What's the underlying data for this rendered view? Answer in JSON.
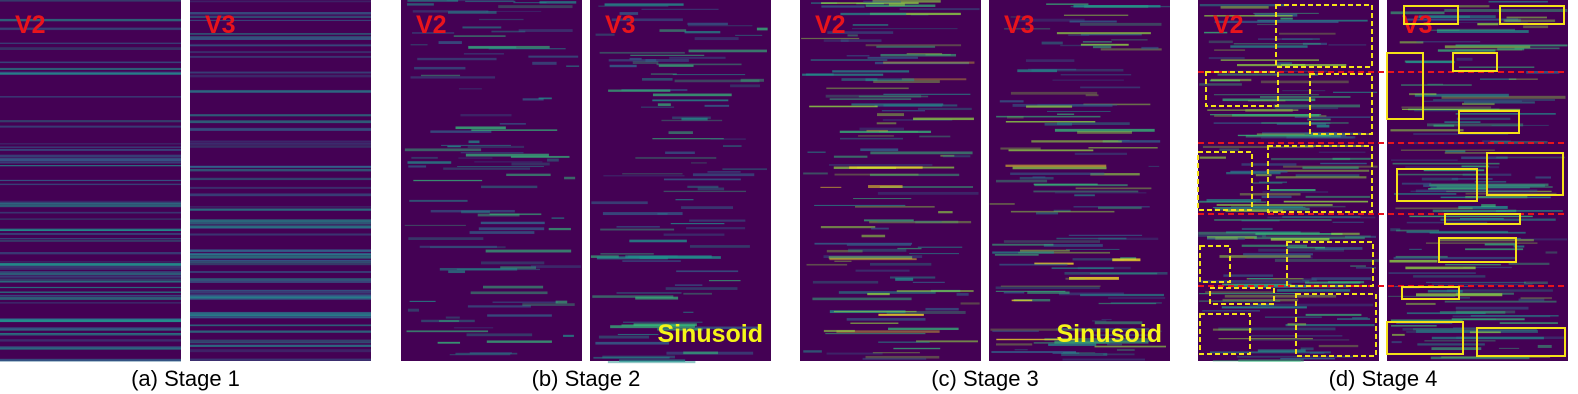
{
  "figure": {
    "panels": [
      {
        "caption": "(a) Stage 1",
        "images": [
          {
            "label": "V2"
          },
          {
            "label": "V3"
          }
        ]
      },
      {
        "caption": "(b) Stage 2",
        "images": [
          {
            "label": "V2"
          },
          {
            "label": "V3",
            "annotation": "Sinusoid"
          }
        ]
      },
      {
        "caption": "(c) Stage 3",
        "images": [
          {
            "label": "V2"
          },
          {
            "label": "V3",
            "annotation": "Sinusoid"
          }
        ]
      },
      {
        "caption": "(d) Stage 4",
        "images": [
          {
            "label": "V2"
          },
          {
            "label": "V3"
          }
        ]
      }
    ]
  }
}
